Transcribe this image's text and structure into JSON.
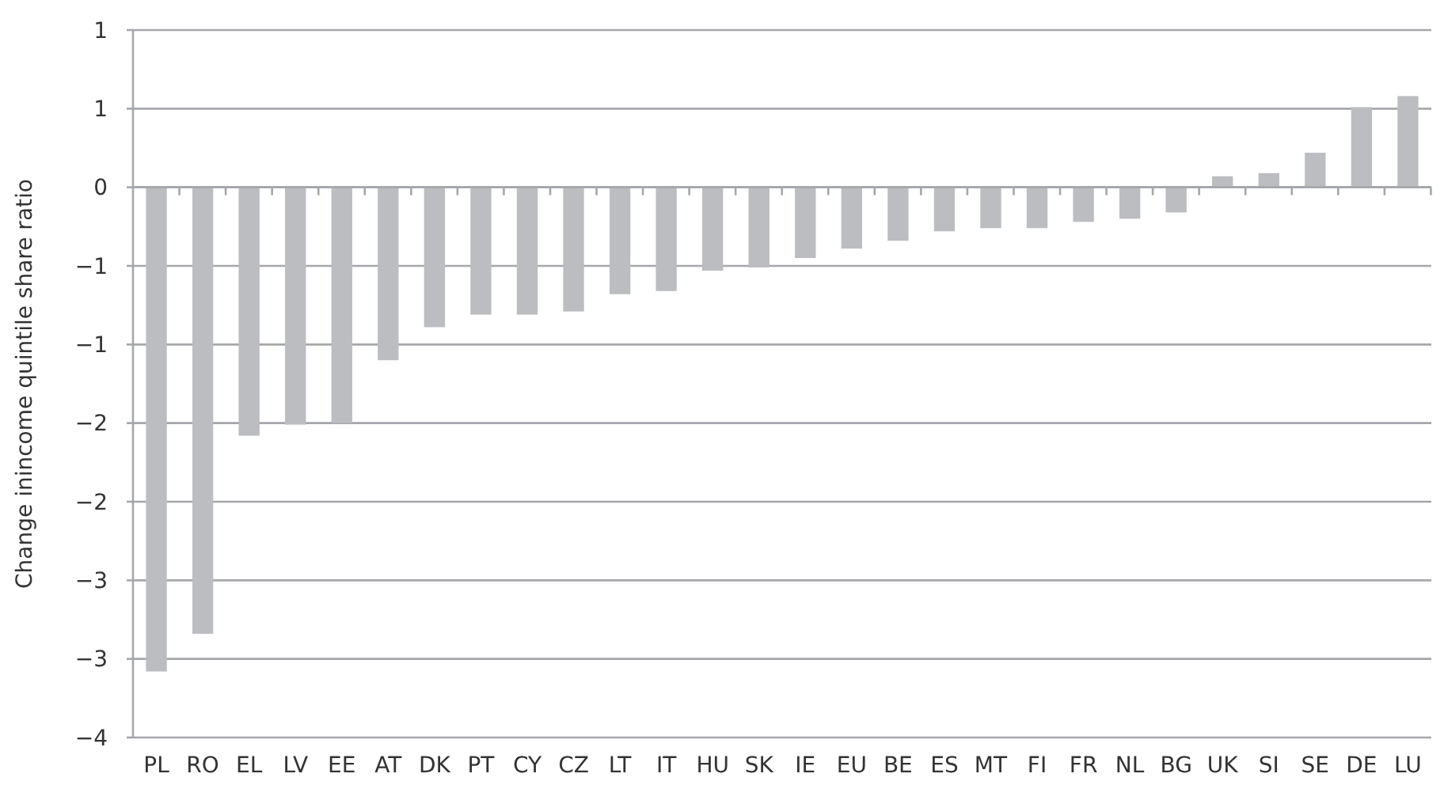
{
  "chart_data": {
    "type": "bar",
    "ylabel": "Change inincome quintile share ratio",
    "categories": [
      "PL",
      "RO",
      "EL",
      "LV",
      "EE",
      "AT",
      "DK",
      "PT",
      "CY",
      "CZ",
      "LT",
      "IT",
      "HU",
      "SK",
      "IE",
      "EU",
      "BE",
      "ES",
      "MT",
      "FI",
      "FR",
      "NL",
      "BG",
      "UK",
      "SI",
      "SE",
      "DE",
      "LU"
    ],
    "values": [
      -3.08,
      -2.84,
      -1.58,
      -1.51,
      -1.5,
      -1.1,
      -0.89,
      -0.81,
      -0.81,
      -0.79,
      -0.68,
      -0.66,
      -0.53,
      -0.51,
      -0.45,
      -0.39,
      -0.34,
      -0.28,
      -0.26,
      -0.26,
      -0.22,
      -0.2,
      -0.16,
      0.07,
      0.09,
      0.22,
      0.51,
      0.58
    ],
    "color": "#bcbdc1",
    "ylim": [
      -3.5,
      1
    ],
    "yticks": [
      {
        "value": 1,
        "label": "1"
      },
      {
        "value": 0.5,
        "label": "1"
      },
      {
        "value": 0,
        "label": "0"
      },
      {
        "value": -0.5,
        "label": "−1"
      },
      {
        "value": -1,
        "label": "−1"
      },
      {
        "value": -1.5,
        "label": "−2"
      },
      {
        "value": -2,
        "label": "−2"
      },
      {
        "value": -2.5,
        "label": "−3"
      },
      {
        "value": -3,
        "label": "−3"
      },
      {
        "value": -3.5,
        "label": "−4"
      }
    ],
    "grid": "y"
  }
}
